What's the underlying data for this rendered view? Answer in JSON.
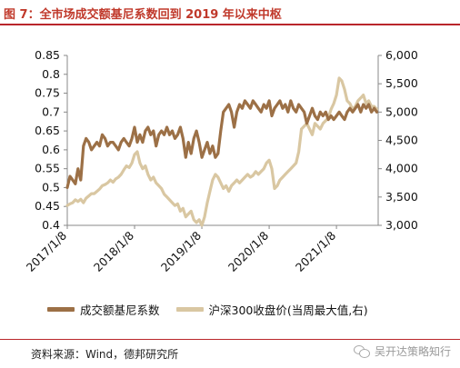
{
  "figure": {
    "title": "图 7：全市场成交额基尼系数回到 2019 年以来中枢",
    "source": "资料来源：Wind，德邦研究所",
    "watermark": "吴开达策略知行"
  },
  "chart_data": {
    "type": "line",
    "colors": {
      "gini": "#9c7046",
      "csi300": "#d9c7a2",
      "title": "#c0392b",
      "rule": "#b9262b"
    },
    "x_ticks": [
      "2017/1/8",
      "2018/1/8",
      "2019/1/8",
      "2020/1/8",
      "2021/1/8"
    ],
    "x_range": [
      2017.0,
      2021.62
    ],
    "y_left": {
      "min": 0.4,
      "max": 0.85,
      "ticks": [
        "0.85",
        "0.8",
        "0.75",
        "0.7",
        "0.65",
        "0.6",
        "0.55",
        "0.5",
        "0.45",
        "0.4"
      ]
    },
    "y_right": {
      "min": 3000,
      "max": 6000,
      "ticks": [
        "6,000",
        "5,500",
        "5,000",
        "4,500",
        "4,000",
        "3,500",
        "3,000"
      ]
    },
    "legend": [
      {
        "name": "成交额基尼系数",
        "axis": "left",
        "color": "#9c7046"
      },
      {
        "name": "沪深300收盘价(当周最大值,右)",
        "axis": "right",
        "color": "#d9c7a2"
      }
    ],
    "series": [
      {
        "name": "成交额基尼系数",
        "axis": "left",
        "x": [
          2017.0,
          2017.04,
          2017.08,
          2017.12,
          2017.16,
          2017.2,
          2017.24,
          2017.28,
          2017.32,
          2017.36,
          2017.4,
          2017.44,
          2017.48,
          2017.52,
          2017.56,
          2017.6,
          2017.64,
          2017.68,
          2017.72,
          2017.76,
          2017.8,
          2017.84,
          2017.88,
          2017.92,
          2017.96,
          2018.0,
          2018.04,
          2018.08,
          2018.12,
          2018.16,
          2018.2,
          2018.24,
          2018.28,
          2018.32,
          2018.36,
          2018.4,
          2018.44,
          2018.48,
          2018.52,
          2018.56,
          2018.6,
          2018.64,
          2018.68,
          2018.72,
          2018.76,
          2018.8,
          2018.84,
          2018.88,
          2018.92,
          2018.96,
          2019.0,
          2019.04,
          2019.08,
          2019.12,
          2019.16,
          2019.2,
          2019.24,
          2019.28,
          2019.32,
          2019.36,
          2019.4,
          2019.44,
          2019.48,
          2019.52,
          2019.56,
          2019.6,
          2019.64,
          2019.68,
          2019.72,
          2019.76,
          2019.8,
          2019.84,
          2019.88,
          2019.92,
          2019.96,
          2020.0,
          2020.04,
          2020.08,
          2020.12,
          2020.16,
          2020.2,
          2020.24,
          2020.28,
          2020.32,
          2020.36,
          2020.4,
          2020.44,
          2020.48,
          2020.52,
          2020.56,
          2020.6,
          2020.64,
          2020.68,
          2020.72,
          2020.76,
          2020.8,
          2020.84,
          2020.88,
          2020.92,
          2020.96,
          2021.0,
          2021.04,
          2021.08,
          2021.12,
          2021.16,
          2021.2,
          2021.24,
          2021.28,
          2021.32,
          2021.36,
          2021.4,
          2021.44,
          2021.48,
          2021.52,
          2021.56,
          2021.6
        ],
        "y": [
          0.5,
          0.53,
          0.52,
          0.51,
          0.55,
          0.52,
          0.61,
          0.63,
          0.62,
          0.6,
          0.61,
          0.62,
          0.61,
          0.64,
          0.63,
          0.61,
          0.62,
          0.62,
          0.61,
          0.6,
          0.62,
          0.63,
          0.62,
          0.61,
          0.63,
          0.66,
          0.62,
          0.64,
          0.62,
          0.65,
          0.66,
          0.64,
          0.65,
          0.61,
          0.64,
          0.65,
          0.64,
          0.66,
          0.64,
          0.65,
          0.63,
          0.64,
          0.66,
          0.63,
          0.58,
          0.62,
          0.59,
          0.63,
          0.65,
          0.62,
          0.58,
          0.6,
          0.62,
          0.59,
          0.61,
          0.58,
          0.59,
          0.65,
          0.7,
          0.71,
          0.72,
          0.7,
          0.66,
          0.7,
          0.72,
          0.71,
          0.73,
          0.72,
          0.71,
          0.73,
          0.72,
          0.71,
          0.7,
          0.72,
          0.71,
          0.73,
          0.69,
          0.71,
          0.72,
          0.73,
          0.71,
          0.72,
          0.7,
          0.73,
          0.71,
          0.7,
          0.72,
          0.71,
          0.7,
          0.67,
          0.69,
          0.71,
          0.69,
          0.68,
          0.7,
          0.69,
          0.7,
          0.68,
          0.69,
          0.68,
          0.69,
          0.7,
          0.69,
          0.68,
          0.7,
          0.71,
          0.7,
          0.71,
          0.72,
          0.7,
          0.72,
          0.71,
          0.72,
          0.7,
          0.71,
          0.7
        ]
      },
      {
        "name": "沪深300收盘价(当周最大值,右)",
        "axis": "right",
        "x": [
          2017.0,
          2017.04,
          2017.08,
          2017.12,
          2017.16,
          2017.2,
          2017.24,
          2017.28,
          2017.32,
          2017.36,
          2017.4,
          2017.44,
          2017.48,
          2017.52,
          2017.56,
          2017.6,
          2017.64,
          2017.68,
          2017.72,
          2017.76,
          2017.8,
          2017.84,
          2017.88,
          2017.92,
          2017.96,
          2018.0,
          2018.04,
          2018.08,
          2018.12,
          2018.16,
          2018.2,
          2018.24,
          2018.28,
          2018.32,
          2018.36,
          2018.4,
          2018.44,
          2018.48,
          2018.52,
          2018.56,
          2018.6,
          2018.64,
          2018.68,
          2018.72,
          2018.76,
          2018.8,
          2018.84,
          2018.88,
          2018.92,
          2018.96,
          2019.0,
          2019.04,
          2019.08,
          2019.12,
          2019.16,
          2019.2,
          2019.24,
          2019.28,
          2019.32,
          2019.36,
          2019.4,
          2019.44,
          2019.48,
          2019.52,
          2019.56,
          2019.6,
          2019.64,
          2019.68,
          2019.72,
          2019.76,
          2019.8,
          2019.84,
          2019.88,
          2019.92,
          2019.96,
          2020.0,
          2020.04,
          2020.08,
          2020.12,
          2020.16,
          2020.2,
          2020.24,
          2020.28,
          2020.32,
          2020.36,
          2020.4,
          2020.44,
          2020.48,
          2020.52,
          2020.56,
          2020.6,
          2020.64,
          2020.68,
          2020.72,
          2020.76,
          2020.8,
          2020.84,
          2020.88,
          2020.92,
          2020.96,
          2021.0,
          2021.04,
          2021.08,
          2021.12,
          2021.16,
          2021.2,
          2021.24,
          2021.28,
          2021.32,
          2021.36,
          2021.4,
          2021.44,
          2021.48,
          2021.52,
          2021.56,
          2021.6
        ],
        "y": [
          3350,
          3380,
          3400,
          3450,
          3420,
          3460,
          3400,
          3480,
          3520,
          3560,
          3560,
          3600,
          3640,
          3700,
          3720,
          3750,
          3800,
          3760,
          3820,
          3850,
          3900,
          3980,
          4050,
          4020,
          4100,
          4250,
          4300,
          4100,
          4000,
          4050,
          3900,
          3800,
          3850,
          3750,
          3700,
          3650,
          3550,
          3500,
          3450,
          3400,
          3350,
          3380,
          3250,
          3300,
          3150,
          3200,
          3250,
          3100,
          3050,
          3100,
          3000,
          3150,
          3400,
          3600,
          3800,
          3900,
          3850,
          3750,
          3650,
          3700,
          3600,
          3700,
          3750,
          3800,
          3750,
          3800,
          3850,
          3900,
          3850,
          3880,
          3950,
          3900,
          3950,
          4000,
          4100,
          4150,
          4000,
          3650,
          3700,
          3800,
          3850,
          3900,
          3950,
          4000,
          4050,
          4100,
          4300,
          4700,
          4750,
          4800,
          4700,
          4600,
          4800,
          4750,
          4700,
          4800,
          4850,
          4900,
          5050,
          5150,
          5300,
          5600,
          5550,
          5400,
          5200,
          5150,
          5050,
          5100,
          5200,
          5250,
          5300,
          5150,
          5200,
          5100,
          5100,
          5050
        ]
      }
    ]
  }
}
